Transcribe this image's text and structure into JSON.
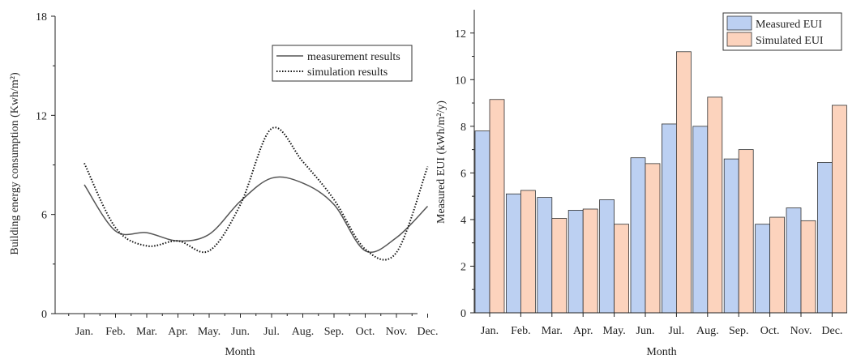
{
  "chart_data": [
    {
      "type": "line",
      "title": "",
      "xlabel": "Month",
      "ylabel": "Building energy consumption (Kwh/m²)",
      "ylim": [
        0,
        18
      ],
      "yticks": [
        "0",
        "6",
        "12",
        "18"
      ],
      "categories": [
        "Jan.",
        "Feb.",
        "Mar.",
        "Apr.",
        "May.",
        "Jun.",
        "Jul.",
        "Aug.",
        "Sep.",
        "Oct.",
        "Nov.",
        "Dec."
      ],
      "legend_position": "top-right",
      "grid": false,
      "series": [
        {
          "name": "measurement results",
          "style": "solid",
          "color": "#555555",
          "values": [
            7.8,
            5.0,
            4.9,
            4.4,
            4.8,
            6.8,
            8.2,
            7.9,
            6.6,
            3.8,
            4.6,
            6.5
          ]
        },
        {
          "name": "simulation results",
          "style": "dotted",
          "color": "#111111",
          "values": [
            9.1,
            5.2,
            4.1,
            4.4,
            3.8,
            6.6,
            11.2,
            9.2,
            6.9,
            3.9,
            3.7,
            8.9
          ]
        }
      ]
    },
    {
      "type": "bar",
      "title": "",
      "xlabel": "Month",
      "ylabel": "Measured EUI (kWh/m²/y)",
      "ylim": [
        0,
        13
      ],
      "yticks": [
        "0",
        "2",
        "4",
        "6",
        "8",
        "10",
        "12"
      ],
      "categories": [
        "Jan.",
        "Feb.",
        "Mar.",
        "Apr.",
        "May.",
        "Jun.",
        "Jul.",
        "Aug.",
        "Sep.",
        "Oct.",
        "Nov.",
        "Dec."
      ],
      "legend_position": "top-right",
      "grid": false,
      "series": [
        {
          "name": "Measured EUI",
          "color": "#bcd0f2",
          "values": [
            7.8,
            5.1,
            4.95,
            4.4,
            4.85,
            6.65,
            8.1,
            8.0,
            6.6,
            3.8,
            4.5,
            6.45
          ]
        },
        {
          "name": "Simulated EUI",
          "color": "#fcd3bd",
          "values": [
            9.15,
            5.25,
            4.05,
            4.45,
            3.8,
            6.4,
            11.2,
            9.25,
            7.0,
            4.1,
            3.95,
            8.9
          ]
        }
      ]
    }
  ]
}
